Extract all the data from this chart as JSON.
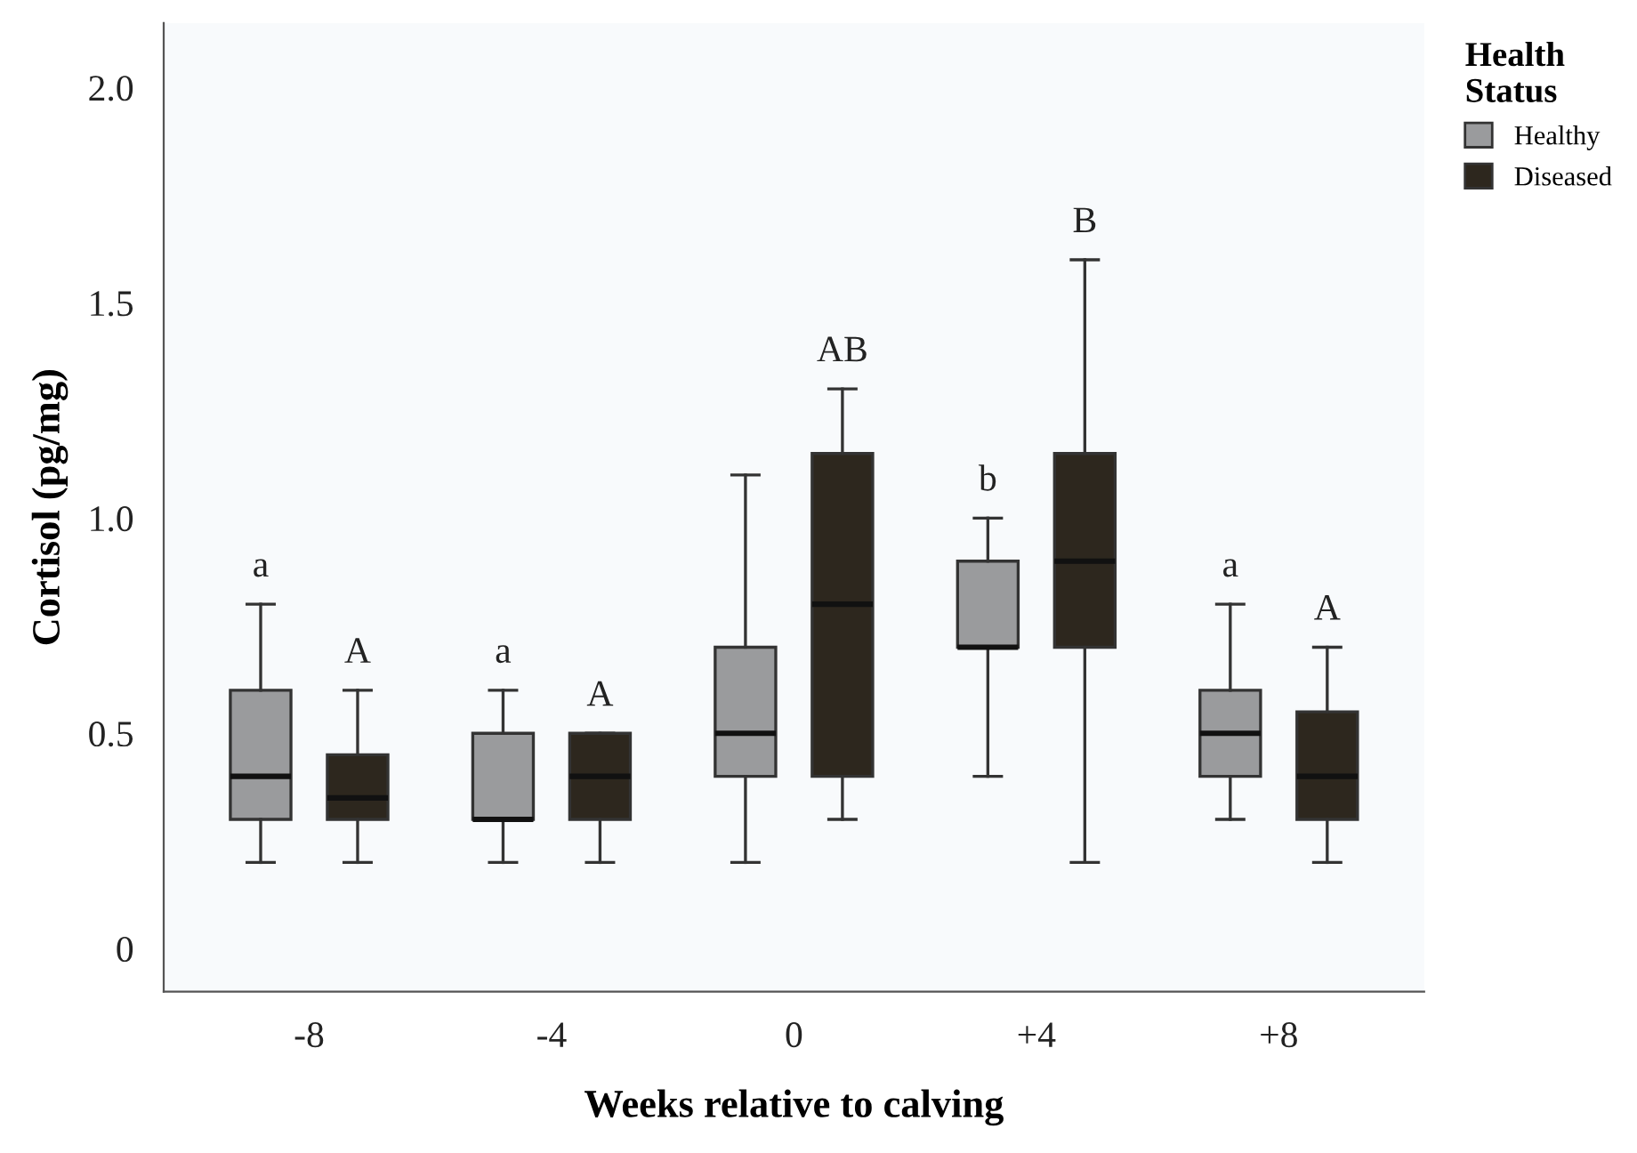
{
  "chart_data": {
    "type": "box",
    "xlabel": "Weeks relative to calving",
    "ylabel": "Cortisol (pg/mg)",
    "legend_title": "Health Status",
    "categories": [
      "-8",
      "-4",
      "0",
      "+4",
      "+8"
    ],
    "series": [
      {
        "name": "Healthy",
        "color": "#9a9b9d",
        "boxes": [
          {
            "low": 0.2,
            "q1": 0.3,
            "median": 0.4,
            "q3": 0.6,
            "high": 0.8
          },
          {
            "low": 0.2,
            "q1": 0.3,
            "median": 0.3,
            "q3": 0.5,
            "high": 0.6
          },
          {
            "low": 0.2,
            "q1": 0.4,
            "median": 0.5,
            "q3": 0.7,
            "high": 1.1
          },
          {
            "low": 0.4,
            "q1": 0.7,
            "median": 0.7,
            "q3": 0.9,
            "high": 1.0
          },
          {
            "low": 0.3,
            "q1": 0.4,
            "median": 0.5,
            "q3": 0.6,
            "high": 0.8
          }
        ]
      },
      {
        "name": "Diseased",
        "color": "#2d271e",
        "boxes": [
          {
            "low": 0.2,
            "q1": 0.3,
            "median": 0.35,
            "q3": 0.45,
            "high": 0.6
          },
          {
            "low": 0.2,
            "q1": 0.3,
            "median": 0.4,
            "q3": 0.5,
            "high": 0.5
          },
          {
            "low": 0.3,
            "q1": 0.4,
            "median": 0.8,
            "q3": 1.15,
            "high": 1.3
          },
          {
            "low": 0.2,
            "q1": 0.7,
            "median": 0.9,
            "q3": 1.15,
            "high": 1.6
          },
          {
            "low": 0.2,
            "q1": 0.3,
            "median": 0.4,
            "q3": 0.55,
            "high": 0.7
          }
        ]
      }
    ],
    "ylim": [
      -0.1,
      2.15
    ],
    "yticks": [
      0,
      0.5,
      {
        "value": 1,
        "label": "1.0"
      },
      1.5,
      {
        "value": 2,
        "label": "2.0"
      }
    ],
    "annotations": [
      "a",
      "A",
      "a",
      "A",
      "AB",
      "b",
      "B",
      "a",
      "A"
    ],
    "legend": "top right",
    "grid": false
  }
}
